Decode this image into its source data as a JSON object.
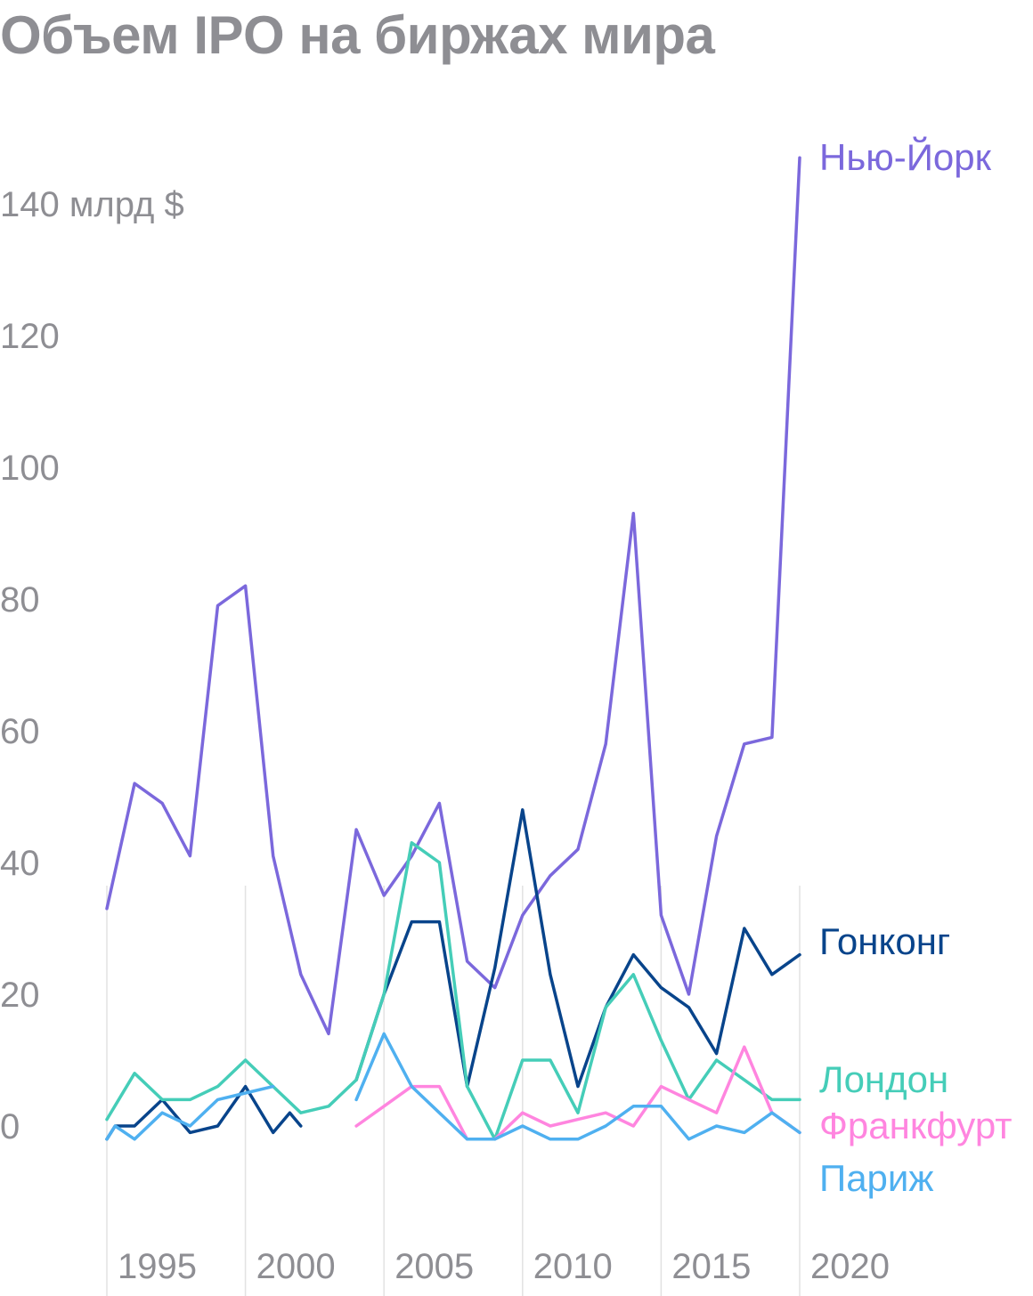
{
  "title": "Объем IPO на биржах мира",
  "chart_data": {
    "type": "line",
    "title": "Объем IPO на биржах мира",
    "ylabel": "млрд $",
    "ylim": [
      -15,
      150
    ],
    "xlim": [
      1993,
      2018
    ],
    "y_ticks": [
      {
        "value": 0,
        "label": "0"
      },
      {
        "value": 20,
        "label": "20"
      },
      {
        "value": 40,
        "label": "40"
      },
      {
        "value": 60,
        "label": "60"
      },
      {
        "value": 80,
        "label": "80"
      },
      {
        "value": 100,
        "label": "100"
      },
      {
        "value": 120,
        "label": "120"
      },
      {
        "value": 140,
        "label": "140 млрд $"
      }
    ],
    "x_ticks": [
      {
        "value": 1993,
        "label": "1995"
      },
      {
        "value": 1998,
        "label": "2000"
      },
      {
        "value": 2003,
        "label": "2005"
      },
      {
        "value": 2008,
        "label": "2010"
      },
      {
        "value": 2013,
        "label": "2015"
      },
      {
        "value": 2018,
        "label": "2020"
      }
    ],
    "grid": "vertical",
    "series": [
      {
        "name": "Нью-Йорк",
        "color": "#7b68dc",
        "label_value": 147,
        "points": [
          [
            1993,
            33
          ],
          [
            1994,
            52
          ],
          [
            1995,
            49
          ],
          [
            1996,
            41
          ],
          [
            1997,
            79
          ],
          [
            1998,
            82
          ],
          [
            1999,
            41
          ],
          [
            2000,
            23
          ],
          [
            2001,
            14
          ],
          [
            2002,
            45
          ],
          [
            2003,
            35
          ],
          [
            2004,
            41
          ],
          [
            2005,
            49
          ],
          [
            2006,
            25
          ],
          [
            2007,
            21
          ],
          [
            2008,
            32
          ],
          [
            2009,
            38
          ],
          [
            2010,
            42
          ],
          [
            2011,
            58
          ],
          [
            2012,
            93
          ],
          [
            2013,
            32
          ],
          [
            2014,
            20
          ],
          [
            2015,
            44
          ],
          [
            2016,
            58
          ],
          [
            2017,
            59
          ],
          [
            2018,
            147
          ]
        ]
      },
      {
        "name": "Гонконг",
        "color": "#08448b",
        "label_value": 28,
        "points": [
          [
            1993,
            -2
          ],
          [
            1993.3,
            0
          ],
          [
            1994,
            0
          ],
          [
            1995,
            4
          ],
          [
            1996,
            -1
          ],
          [
            1997,
            0
          ],
          [
            1998,
            6
          ],
          [
            1999,
            -1
          ],
          [
            1999.6,
            2
          ],
          [
            2000,
            0
          ],
          null,
          [
            2002,
            7
          ],
          [
            2003,
            20
          ],
          [
            2004,
            31
          ],
          [
            2005,
            31
          ],
          [
            2006,
            6
          ],
          [
            2007,
            24
          ],
          [
            2008,
            48
          ],
          [
            2009,
            23
          ],
          [
            2010,
            6
          ],
          [
            2011,
            18
          ],
          [
            2012,
            26
          ],
          [
            2013,
            21
          ],
          [
            2014,
            18
          ],
          [
            2015,
            11
          ],
          [
            2016,
            30
          ],
          [
            2017,
            23
          ],
          [
            2018,
            26
          ]
        ]
      },
      {
        "name": "Лондон",
        "color": "#45cdb8",
        "label_value": 7,
        "points": [
          [
            1993,
            1
          ],
          [
            1994,
            8
          ],
          [
            1995,
            4
          ],
          [
            1996,
            4
          ],
          [
            1997,
            6
          ],
          [
            1998,
            10
          ],
          [
            1999,
            6
          ],
          [
            2000,
            2
          ],
          [
            2001,
            3
          ],
          [
            2002,
            7
          ],
          [
            2003,
            20
          ],
          [
            2004,
            43
          ],
          [
            2005,
            40
          ],
          [
            2006,
            6
          ],
          [
            2007,
            -2
          ],
          [
            2008,
            10
          ],
          [
            2009,
            10
          ],
          [
            2010,
            2
          ],
          [
            2011,
            18
          ],
          [
            2012,
            23
          ],
          [
            2013,
            13
          ],
          [
            2014,
            4
          ],
          [
            2015,
            10
          ],
          [
            2016,
            7
          ],
          [
            2017,
            4
          ],
          [
            2018,
            4
          ]
        ]
      },
      {
        "name": "Франкфурт",
        "color": "#ff85df",
        "label_value": 0,
        "points": [
          [
            2002,
            0
          ],
          [
            2003,
            3
          ],
          [
            2004,
            6
          ],
          [
            2005,
            6
          ],
          [
            2006,
            -2
          ],
          [
            2007,
            -2
          ],
          [
            2008,
            2
          ],
          [
            2009,
            0
          ],
          [
            2010,
            1
          ],
          [
            2011,
            2
          ],
          [
            2012,
            0
          ],
          [
            2013,
            6
          ],
          [
            2014,
            4
          ],
          [
            2015,
            2
          ],
          [
            2016,
            12
          ],
          [
            2017,
            2
          ],
          [
            2018,
            -1
          ]
        ]
      },
      {
        "name": "Париж",
        "color": "#4fb0f0",
        "label_value": -8,
        "points": [
          [
            1993,
            -2
          ],
          [
            1993.3,
            0
          ],
          [
            1994,
            -2
          ],
          [
            1995,
            2
          ],
          [
            1996,
            0
          ],
          [
            1997,
            4
          ],
          [
            1998,
            5
          ],
          [
            1999,
            6
          ],
          null,
          [
            2002,
            4
          ],
          [
            2003,
            14
          ],
          [
            2004,
            6
          ],
          [
            2005,
            2
          ],
          [
            2006,
            -2
          ],
          [
            2007,
            -2
          ],
          [
            2008,
            0
          ],
          [
            2009,
            -2
          ],
          [
            2010,
            -2
          ],
          [
            2011,
            0
          ],
          [
            2012,
            3
          ],
          [
            2013,
            3
          ],
          [
            2014,
            -2
          ],
          [
            2015,
            0
          ],
          [
            2016,
            -1
          ],
          [
            2017,
            2
          ],
          [
            2018,
            -1
          ]
        ]
      }
    ]
  }
}
